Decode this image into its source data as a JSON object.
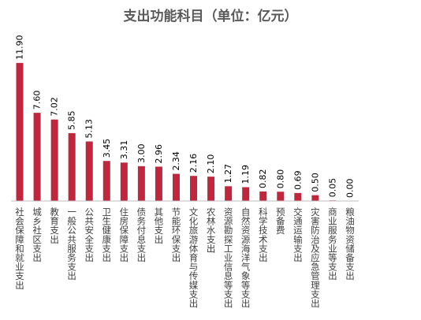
{
  "chart_data": {
    "type": "bar",
    "title": "支出功能科目（单位：亿元）",
    "xlabel": "",
    "ylabel": "",
    "bar_color": "#c0273d",
    "ylim": [
      0,
      12
    ],
    "grid": false,
    "categories": [
      "社会保障和就业支出",
      "城乡社区支出",
      "教育支出",
      "一般公共服务支出",
      "公共安全支出",
      "卫生健康支出",
      "住房保障支出",
      "债务付息支出",
      "其他支出",
      "节能环保支出",
      "文化旅游体育与传媒支出",
      "农林水支出",
      "资源勘探工业信息等支出",
      "自然资源海洋气象等支出",
      "科学技术支出",
      "预备费",
      "交通运输支出",
      "灾害防治及应急管理支出",
      "商业服务业等支出",
      "粮油物资储备支出"
    ],
    "values": [
      11.9,
      7.6,
      7.02,
      5.85,
      5.13,
      3.45,
      3.31,
      3.0,
      2.96,
      2.34,
      2.16,
      2.1,
      1.27,
      1.19,
      0.82,
      0.8,
      0.69,
      0.5,
      0.05,
      0.0
    ],
    "value_labels": [
      "11.90",
      "7.60",
      "7.02",
      "5.85",
      "5.13",
      "3.45",
      "3.31",
      "3.00",
      "2.96",
      "2.34",
      "2.16",
      "2.10",
      "1.27",
      "1.19",
      "0.82",
      "0.80",
      "0.69",
      "0.50",
      "0.05",
      "0.00"
    ]
  }
}
